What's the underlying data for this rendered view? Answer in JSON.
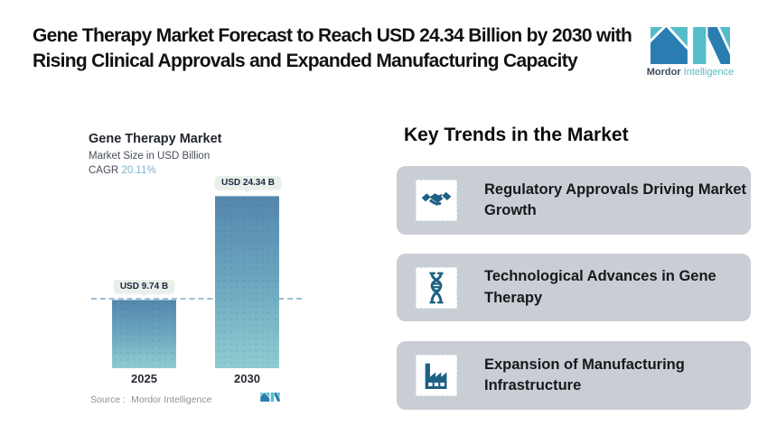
{
  "header": {
    "title": "Gene Therapy Market Forecast to Reach USD 24.34 Billion by 2030 with Rising Clinical Approvals and Expanded Manufacturing Capacity"
  },
  "brand": {
    "name_bold": "Mordor",
    "name_light": "Intelligence",
    "logo_icon": "mordor-intelligence-m-logo"
  },
  "chart": {
    "title": "Gene Therapy Market",
    "subtitle": "Market Size in USD Billion",
    "cagr_label": "CAGR",
    "cagr_value": "20.11%",
    "bars": [
      {
        "year": "2025",
        "label": "USD 9.74 B"
      },
      {
        "year": "2030",
        "label": "USD 24.34 B"
      }
    ],
    "source_label": "Source :",
    "source_value": "Mordor Intelligence"
  },
  "chart_data": {
    "type": "bar",
    "categories": [
      "2025",
      "2030"
    ],
    "values": [
      9.74,
      24.34
    ],
    "value_labels": [
      "USD 9.74 B",
      "USD 24.34 B"
    ],
    "title": "Gene Therapy Market",
    "ylabel": "Market Size in USD Billion",
    "cagr_pct": 20.11,
    "ylim": [
      0,
      26
    ],
    "grid": false,
    "legend": false,
    "reference_line_y": 9.74,
    "reference_line_style": "dashed",
    "bar_gradient_top": "#5587ad",
    "bar_gradient_bottom": "#8ecdd2"
  },
  "trends": {
    "heading": "Key Trends in the Market",
    "cards": [
      {
        "icon": "handshake-icon",
        "text": "Regulatory Approvals Driving Market Growth"
      },
      {
        "icon": "dna-icon",
        "text": "Technological Advances in Gene Therapy"
      },
      {
        "icon": "factory-icon",
        "text": "Expansion of Manufacturing Infrastructure"
      }
    ]
  },
  "colors": {
    "accent_teal": "#56bcc9",
    "accent_blue": "#2a7db0",
    "logo_navy": "#3c4a5c",
    "card_bg": "#c9cdd4",
    "icon_color": "#1d6184",
    "dashed_line": "#9fc0d6",
    "pill_bg": "#e9efe9",
    "cagr_value_color": "#79b7cd"
  }
}
